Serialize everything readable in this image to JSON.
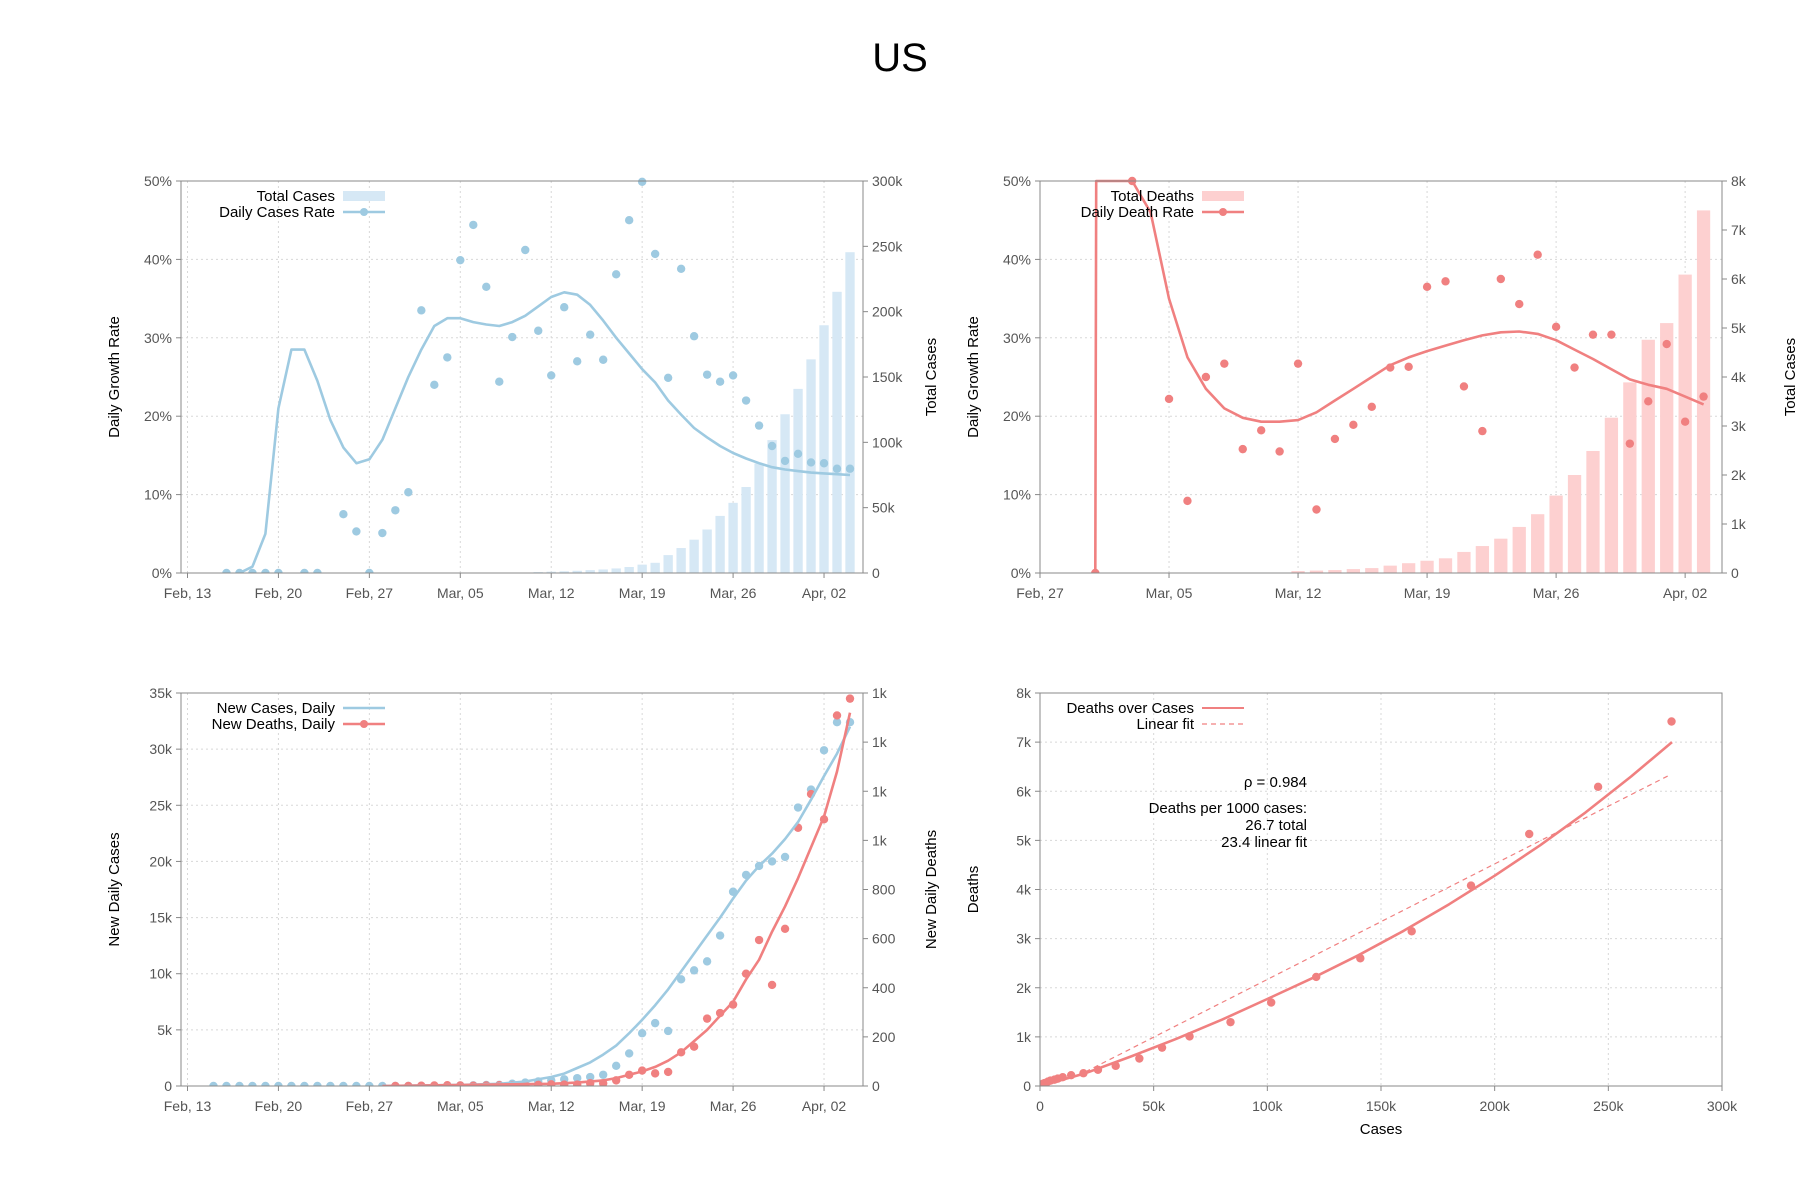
{
  "title": "US",
  "colors": {
    "cases": "#9ecae1",
    "cases_bar": "#d6e8f5",
    "deaths": "#f08080",
    "deaths_bar": "#fdd0d0",
    "grid": "#d8d8d8",
    "axis": "#888888"
  },
  "chart_data": [
    {
      "type": "bar",
      "panel": "top-left",
      "xlabel": "",
      "ylabel": "Daily Growth Rate",
      "y2label": "Total Cases",
      "x_ticks": [
        "Feb, 13",
        "Feb, 20",
        "Feb, 27",
        "Mar, 05",
        "Mar, 12",
        "Mar, 19",
        "Mar, 26",
        "Apr, 02"
      ],
      "y_ticks": [
        "0%",
        "10%",
        "20%",
        "30%",
        "40%",
        "50%"
      ],
      "y2_ticks": [
        "0",
        "50k",
        "100k",
        "150k",
        "200k",
        "250k",
        "300k"
      ],
      "ylim": [
        0,
        50
      ],
      "y2lim": [
        0,
        300000
      ],
      "xlim": [
        -0.5,
        52
      ],
      "grid": true,
      "legend": {
        "position": "top-left",
        "entries": [
          "Total Cases",
          "Daily Cases Rate"
        ]
      },
      "series": [
        {
          "name": "Total Cases",
          "type": "bar",
          "axis": "right",
          "x": [
            27,
            28,
            29,
            30,
            31,
            32,
            33,
            34,
            35,
            36,
            37,
            38,
            39,
            40,
            41,
            42,
            43,
            44,
            45,
            46,
            47,
            48,
            49,
            50,
            51
          ],
          "values": [
            700,
            1000,
            1300,
            1700,
            2200,
            2700,
            3500,
            4600,
            6400,
            7800,
            13700,
            19100,
            25500,
            33300,
            43700,
            53700,
            65800,
            83800,
            101700,
            121500,
            140900,
            163500,
            189600,
            215200,
            245500
          ]
        },
        {
          "name": "Daily Cases Rate",
          "type": "scatter",
          "axis": "left",
          "x": [
            3,
            4,
            5,
            6,
            7,
            9,
            10,
            12,
            13,
            14,
            15,
            16,
            17,
            18,
            19,
            20,
            21,
            22,
            23,
            24,
            25,
            26,
            27,
            28,
            29,
            30,
            31,
            32,
            33,
            34,
            35,
            36,
            37,
            38,
            39,
            40,
            41,
            42,
            43,
            44,
            45,
            46,
            47,
            48,
            49,
            50,
            51
          ],
          "values": [
            0,
            0,
            0,
            0,
            0,
            0,
            0,
            7.5,
            5.3,
            0,
            5.1,
            8,
            10.3,
            33.5,
            24,
            27.5,
            39.9,
            44.4,
            36.5,
            24.4,
            30.1,
            41.2,
            30.9,
            25.2,
            33.9,
            27,
            30.4,
            27.2,
            38.1,
            45,
            49.9,
            40.7,
            24.9,
            38.8,
            30.2,
            25.3,
            24.4,
            25.2,
            22,
            18.8,
            16.2,
            14.3,
            15.2,
            14.1,
            14,
            13.3,
            13.3
          ]
        },
        {
          "name": "trend",
          "type": "line",
          "axis": "left",
          "x": [
            4,
            5,
            6,
            6.5,
            7,
            8,
            9,
            10,
            11,
            12,
            13,
            14,
            15,
            16,
            17,
            18,
            19,
            20,
            21,
            22,
            23,
            24,
            25,
            26,
            27,
            28,
            29,
            30,
            31,
            32,
            33,
            34,
            35,
            36,
            37,
            38,
            39,
            40,
            41,
            42,
            43,
            44,
            45,
            46,
            47,
            48,
            49,
            50,
            51
          ],
          "values": [
            0,
            0.8,
            5,
            13,
            21,
            28.5,
            28.5,
            24.5,
            19.5,
            16,
            14,
            14.5,
            17,
            21,
            25,
            28.5,
            31.5,
            32.5,
            32.5,
            32,
            31.7,
            31.5,
            32,
            32.8,
            34,
            35.2,
            35.8,
            35.5,
            34.2,
            32.2,
            30,
            28,
            26,
            24.3,
            22,
            20.2,
            18.5,
            17.3,
            16.2,
            15.3,
            14.6,
            14,
            13.5,
            13.2,
            13,
            12.8,
            12.7,
            12.6,
            12.5
          ]
        }
      ]
    },
    {
      "type": "bar",
      "panel": "top-right",
      "xlabel": "",
      "ylabel": "Daily Growth Rate",
      "y2label": "Total Cases",
      "x_ticks": [
        "Feb, 27",
        "Mar, 05",
        "Mar, 12",
        "Mar, 19",
        "Mar, 26",
        "Apr, 02"
      ],
      "y_ticks": [
        "0%",
        "10%",
        "20%",
        "30%",
        "40%",
        "50%"
      ],
      "y2_ticks": [
        "0",
        "1k",
        "2k",
        "3k",
        "4k",
        "5k",
        "6k",
        "7k",
        "8k"
      ],
      "ylim": [
        0,
        50
      ],
      "y2lim": [
        0,
        8000
      ],
      "xlim": [
        0,
        37
      ],
      "grid": true,
      "legend": {
        "position": "top-left",
        "entries": [
          "Total Deaths",
          "Daily Death Rate"
        ]
      },
      "series": [
        {
          "name": "Total Deaths",
          "type": "bar",
          "axis": "right",
          "x": [
            14,
            15,
            16,
            17,
            18,
            19,
            20,
            21,
            22,
            23,
            24,
            25,
            26,
            27,
            28,
            29,
            30,
            31,
            32,
            33,
            34,
            35,
            36
          ],
          "values": [
            40,
            50,
            60,
            80,
            100,
            150,
            200,
            250,
            300,
            430,
            550,
            700,
            940,
            1200,
            1580,
            2000,
            2490,
            3170,
            3890,
            4760,
            5100,
            6090,
            7400
          ]
        },
        {
          "name": "Daily Death Rate",
          "type": "scatter",
          "axis": "left",
          "x": [
            3,
            5,
            7,
            8,
            9,
            10,
            11,
            12,
            13,
            14,
            15,
            16,
            17,
            18,
            19,
            20,
            21,
            22,
            23,
            24,
            25,
            26,
            27,
            28,
            29,
            30,
            31,
            32,
            33,
            34,
            35,
            36
          ],
          "values": [
            0,
            50,
            22.2,
            9.2,
            25,
            26.7,
            15.8,
            18.2,
            15.5,
            26.7,
            8.1,
            17.1,
            18.9,
            21.2,
            26.2,
            26.3,
            36.5,
            37.2,
            23.8,
            18.1,
            37.5,
            34.3,
            40.6,
            31.4,
            26.2,
            30.4,
            30.4,
            16.5,
            21.9,
            29.2,
            19.3,
            22.5
          ]
        },
        {
          "name": "trend",
          "type": "line",
          "axis": "left",
          "x": [
            3,
            3.05,
            3.5,
            4,
            5,
            6,
            7,
            8,
            9,
            10,
            11,
            12,
            13,
            14,
            15,
            16,
            17,
            18,
            19,
            20,
            21,
            22,
            23,
            24,
            25,
            26,
            27,
            28,
            29,
            30,
            31,
            32,
            33,
            34,
            35,
            36
          ],
          "values": [
            0,
            50,
            50,
            50,
            50,
            46,
            35,
            27.5,
            23.5,
            21,
            19.8,
            19.3,
            19.3,
            19.5,
            20.5,
            22,
            23.5,
            25,
            26.5,
            27.5,
            28.3,
            29,
            29.7,
            30.3,
            30.7,
            30.8,
            30.5,
            29.7,
            28.5,
            27.3,
            26,
            24.7,
            24,
            23.5,
            22.5,
            21.5
          ]
        }
      ]
    },
    {
      "type": "line",
      "panel": "bottom-left",
      "xlabel": "",
      "ylabel": "New Daily Cases",
      "y2label": "New Daily Deaths",
      "x_ticks": [
        "Feb, 13",
        "Feb, 20",
        "Feb, 27",
        "Mar, 05",
        "Mar, 12",
        "Mar, 19",
        "Mar, 26",
        "Apr, 02"
      ],
      "y_ticks": [
        "0",
        "5k",
        "10k",
        "15k",
        "20k",
        "25k",
        "30k",
        "35k"
      ],
      "y2_ticks": [
        "0",
        "200",
        "400",
        "600",
        "800",
        "1k",
        "1k",
        "1k",
        "1k"
      ],
      "ylim": [
        0,
        35000
      ],
      "y2lim": [
        0,
        1400
      ],
      "xlim": [
        -0.5,
        52
      ],
      "grid": true,
      "legend": {
        "position": "top-left",
        "entries": [
          "New Cases, Daily",
          "New Deaths, Daily"
        ]
      },
      "series": [
        {
          "name": "New Cases, Daily",
          "type": "scatter",
          "axis": "left",
          "x": [
            2,
            3,
            4,
            5,
            6,
            7,
            8,
            9,
            10,
            11,
            12,
            13,
            14,
            15,
            16,
            17,
            18,
            19,
            20,
            21,
            22,
            23,
            24,
            25,
            26,
            27,
            28,
            29,
            30,
            31,
            32,
            33,
            34,
            35,
            36,
            37,
            38,
            39,
            40,
            41,
            42,
            43,
            44,
            45,
            46,
            47,
            48,
            49,
            50,
            51
          ],
          "values": [
            0,
            0,
            0,
            0,
            0,
            0,
            0,
            0,
            0,
            0,
            0,
            0,
            0,
            0,
            0,
            0,
            0,
            20,
            30,
            50,
            60,
            90,
            100,
            200,
            300,
            400,
            500,
            600,
            700,
            800,
            1000,
            1800,
            2900,
            4700,
            5600,
            4900,
            9500,
            10300,
            11100,
            13400,
            17300,
            18800,
            19600,
            20000,
            20400,
            24800,
            26400,
            29900,
            32400,
            32400
          ]
        },
        {
          "name": "New Deaths, Daily",
          "type": "scatter",
          "axis": "right",
          "x": [
            16,
            17,
            18,
            19,
            20,
            21,
            22,
            23,
            24,
            25,
            26,
            27,
            28,
            29,
            30,
            31,
            32,
            33,
            34,
            35,
            36,
            37,
            38,
            39,
            40,
            41,
            42,
            43,
            44,
            45,
            46,
            47,
            48,
            49,
            50,
            51
          ],
          "values": [
            0,
            0,
            1,
            2,
            3,
            2,
            1,
            2,
            3,
            3,
            2,
            4,
            6,
            5,
            5,
            10,
            10,
            20,
            40,
            55,
            45,
            50,
            120,
            140,
            240,
            260,
            290,
            400,
            520,
            360,
            560,
            920,
            1040,
            950,
            1320,
            1380
          ]
        },
        {
          "name": "cases trend",
          "type": "line",
          "axis": "left",
          "x": [
            15,
            18,
            21,
            24,
            26,
            28,
            29,
            30,
            31,
            32,
            33,
            34,
            35,
            36,
            37,
            38,
            39,
            40,
            41,
            42,
            43,
            44,
            45,
            46,
            47,
            48,
            49,
            50,
            51
          ],
          "values": [
            0,
            50,
            100,
            200,
            400,
            800,
            1100,
            1600,
            2100,
            2800,
            3600,
            4700,
            5900,
            7200,
            8600,
            10200,
            11800,
            13400,
            15000,
            16700,
            18300,
            19600,
            20700,
            22000,
            23500,
            25500,
            27600,
            29600,
            32000
          ]
        },
        {
          "name": "deaths trend",
          "type": "line",
          "axis": "right",
          "x": [
            15,
            20,
            25,
            28,
            30,
            32,
            33,
            34,
            35,
            36,
            37,
            38,
            39,
            40,
            41,
            42,
            43,
            44,
            45,
            46,
            47,
            48,
            49,
            50,
            51
          ],
          "values": [
            0,
            3,
            6,
            8,
            12,
            20,
            28,
            40,
            52,
            68,
            90,
            120,
            160,
            200,
            250,
            300,
            380,
            450,
            550,
            640,
            740,
            850,
            960,
            1120,
            1330
          ]
        }
      ]
    },
    {
      "type": "scatter",
      "panel": "bottom-right",
      "xlabel": "Cases",
      "ylabel": "Deaths",
      "x_ticks": [
        "0",
        "50k",
        "100k",
        "150k",
        "200k",
        "250k",
        "300k"
      ],
      "y_ticks": [
        "0",
        "1k",
        "2k",
        "3k",
        "4k",
        "5k",
        "6k",
        "7k",
        "8k"
      ],
      "xlim": [
        0,
        300000
      ],
      "ylim": [
        0,
        8000
      ],
      "grid": true,
      "legend": {
        "position": "top-left",
        "entries": [
          "Deaths over Cases",
          "Linear fit"
        ]
      },
      "annotations": [
        "ρ = 0.984",
        "Deaths per 1000 cases:",
        "26.7 total",
        "23.4 linear fit"
      ],
      "series": [
        {
          "name": "Deaths over Cases",
          "type": "scatter",
          "x": [
            0,
            800,
            1200,
            2000,
            3500,
            4600,
            6400,
            7800,
            10000,
            13700,
            19100,
            25500,
            33300,
            43700,
            53700,
            65800,
            83800,
            101700,
            121500,
            140900,
            163500,
            189600,
            215200,
            245500,
            277800
          ],
          "values": [
            0,
            30,
            45,
            60,
            90,
            110,
            130,
            150,
            180,
            220,
            260,
            330,
            410,
            560,
            780,
            1010,
            1300,
            1700,
            2220,
            2600,
            3150,
            4080,
            5130,
            6090,
            7420
          ]
        },
        {
          "name": "curve",
          "type": "line",
          "x": [
            0,
            20000,
            40000,
            60000,
            80000,
            100000,
            120000,
            140000,
            160000,
            180000,
            200000,
            220000,
            240000,
            260000,
            278000
          ],
          "values": [
            0,
            260,
            600,
            960,
            1350,
            1770,
            2200,
            2660,
            3160,
            3700,
            4280,
            4900,
            5570,
            6300,
            7000
          ]
        },
        {
          "name": "Linear fit",
          "type": "line",
          "x": [
            20000,
            277000
          ],
          "values": [
            290,
            6330
          ]
        }
      ]
    }
  ]
}
